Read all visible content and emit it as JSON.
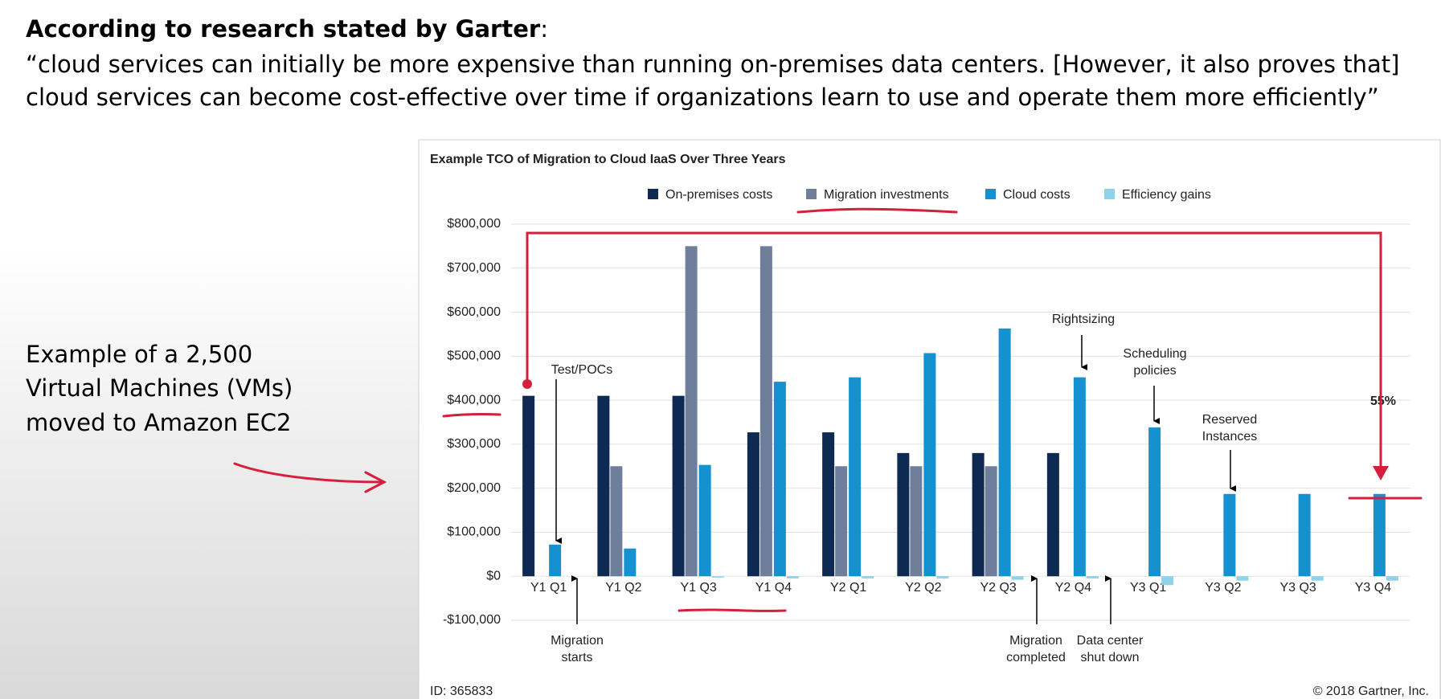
{
  "slide": {
    "heading": "According to research stated by Garter",
    "heading_suffix": ":",
    "quote": [
      "“cloud services can initially be more expensive than running on-premises data centers. [However, it also proves that]",
      "cloud services can become cost-effective over time if organizations learn to use and operate them more efficiently”"
    ],
    "note": [
      "Example of a 2,500",
      "Virtual Machines (VMs)",
      "moved to Amazon EC2"
    ]
  },
  "chart_data": {
    "type": "bar",
    "title": "Example TCO of Migration to Cloud IaaS Over Three Years",
    "categories": [
      "Y1 Q1",
      "Y1 Q2",
      "Y1 Q3",
      "Y1 Q4",
      "Y2 Q1",
      "Y2 Q2",
      "Y2 Q3",
      "Y2 Q4",
      "Y3 Q1",
      "Y3 Q2",
      "Y3 Q3",
      "Y3 Q4"
    ],
    "series": [
      {
        "name": "On-premises costs",
        "color": "#0f2a52",
        "values": [
          410000,
          410000,
          410000,
          327000,
          327000,
          280000,
          280000,
          280000,
          null,
          null,
          null,
          null
        ]
      },
      {
        "name": "Migration investments",
        "color": "#6f7f9b",
        "values": [
          null,
          250000,
          750000,
          750000,
          250000,
          250000,
          250000,
          null,
          null,
          null,
          null,
          null
        ]
      },
      {
        "name": "Cloud costs",
        "color": "#1591cf",
        "values": [
          72000,
          63000,
          253000,
          442000,
          452000,
          507000,
          563000,
          452000,
          338000,
          187000,
          187000,
          187000
        ]
      },
      {
        "name": "Efficiency gains",
        "color": "#8fd3ea",
        "values": [
          null,
          null,
          -3000,
          -5000,
          -5000,
          -5000,
          -8000,
          -5000,
          -20000,
          -10000,
          -10000,
          -10000
        ]
      }
    ],
    "ylim": [
      -100000,
      800000
    ],
    "yticks": [
      {
        "value": -100000,
        "label": "-$100,000"
      },
      {
        "value": 0,
        "label": "$0"
      },
      {
        "value": 100000,
        "label": "$100,000"
      },
      {
        "value": 200000,
        "label": "$200,000"
      },
      {
        "value": 300000,
        "label": "$300,000"
      },
      {
        "value": 400000,
        "label": "$400,000"
      },
      {
        "value": 500000,
        "label": "$500,000"
      },
      {
        "value": 600000,
        "label": "$600,000"
      },
      {
        "value": 700000,
        "label": "$700,000"
      },
      {
        "value": 800000,
        "label": "$800,000"
      }
    ],
    "grid": true,
    "annotations": [
      [
        "Test/POCs"
      ],
      [
        "Migration",
        "starts"
      ],
      [
        "Rightsizing"
      ],
      [
        "Scheduling",
        "policies"
      ],
      [
        "Reserved",
        "Instances"
      ],
      [
        "Migration",
        "completed"
      ],
      [
        "Data center",
        "shut down"
      ],
      [
        "55%"
      ]
    ],
    "source_id": "ID: 365833",
    "copyright": "© 2018 Gartner, Inc."
  }
}
